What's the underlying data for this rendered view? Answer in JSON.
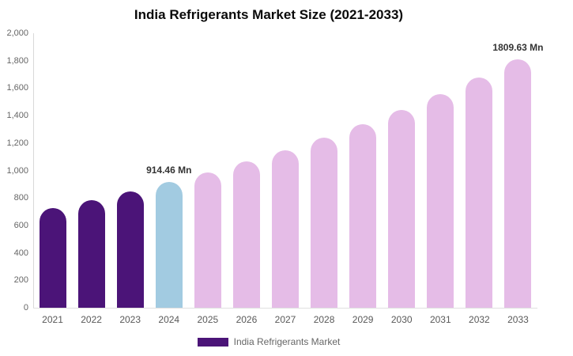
{
  "legend": {
    "label": "India Refrigerants Market"
  },
  "colors": {
    "historical_bar": "#4b1478",
    "base_year_bar": "#a2cbe1",
    "forecast_bar": "#e5bce7",
    "axis_line": "#d9d9d9",
    "tick_text": "#666666",
    "data_label_text": "#333333"
  },
  "chart_data": {
    "type": "bar",
    "title": "India Refrigerants Market Size (2021-2033)",
    "unit": "Mn",
    "xlabel": "",
    "ylabel": "",
    "ylim": [
      0,
      2000
    ],
    "ytick_step": 200,
    "ytick_labels": [
      "0",
      "200",
      "400",
      "600",
      "800",
      "1,000",
      "1,200",
      "1,400",
      "1,600",
      "1,800",
      "2,000"
    ],
    "grid": false,
    "legend_position": "bottom",
    "legend_entries": [
      "India Refrigerants Market"
    ],
    "categories": [
      "2021",
      "2022",
      "2023",
      "2024",
      "2025",
      "2026",
      "2027",
      "2028",
      "2029",
      "2030",
      "2031",
      "2032",
      "2033"
    ],
    "points": [
      {
        "year": "2021",
        "value": 728,
        "color": "#4b1478",
        "role": "historical"
      },
      {
        "year": "2022",
        "value": 786,
        "color": "#4b1478",
        "role": "historical"
      },
      {
        "year": "2023",
        "value": 848,
        "color": "#4b1478",
        "role": "historical"
      },
      {
        "year": "2024",
        "value": 914.46,
        "color": "#a2cbe1",
        "role": "base-year",
        "label": "914.46 Mn"
      },
      {
        "year": "2025",
        "value": 986,
        "color": "#e5bce7",
        "role": "forecast"
      },
      {
        "year": "2026",
        "value": 1064,
        "color": "#e5bce7",
        "role": "forecast"
      },
      {
        "year": "2027",
        "value": 1148,
        "color": "#e5bce7",
        "role": "forecast"
      },
      {
        "year": "2028",
        "value": 1239,
        "color": "#e5bce7",
        "role": "forecast"
      },
      {
        "year": "2029",
        "value": 1336,
        "color": "#e5bce7",
        "role": "forecast"
      },
      {
        "year": "2030",
        "value": 1442,
        "color": "#e5bce7",
        "role": "forecast"
      },
      {
        "year": "2031",
        "value": 1555,
        "color": "#e5bce7",
        "role": "forecast"
      },
      {
        "year": "2032",
        "value": 1678,
        "color": "#e5bce7",
        "role": "forecast"
      },
      {
        "year": "2033",
        "value": 1809.63,
        "color": "#e5bce7",
        "role": "forecast",
        "label": "1809.63 Mn"
      }
    ]
  }
}
